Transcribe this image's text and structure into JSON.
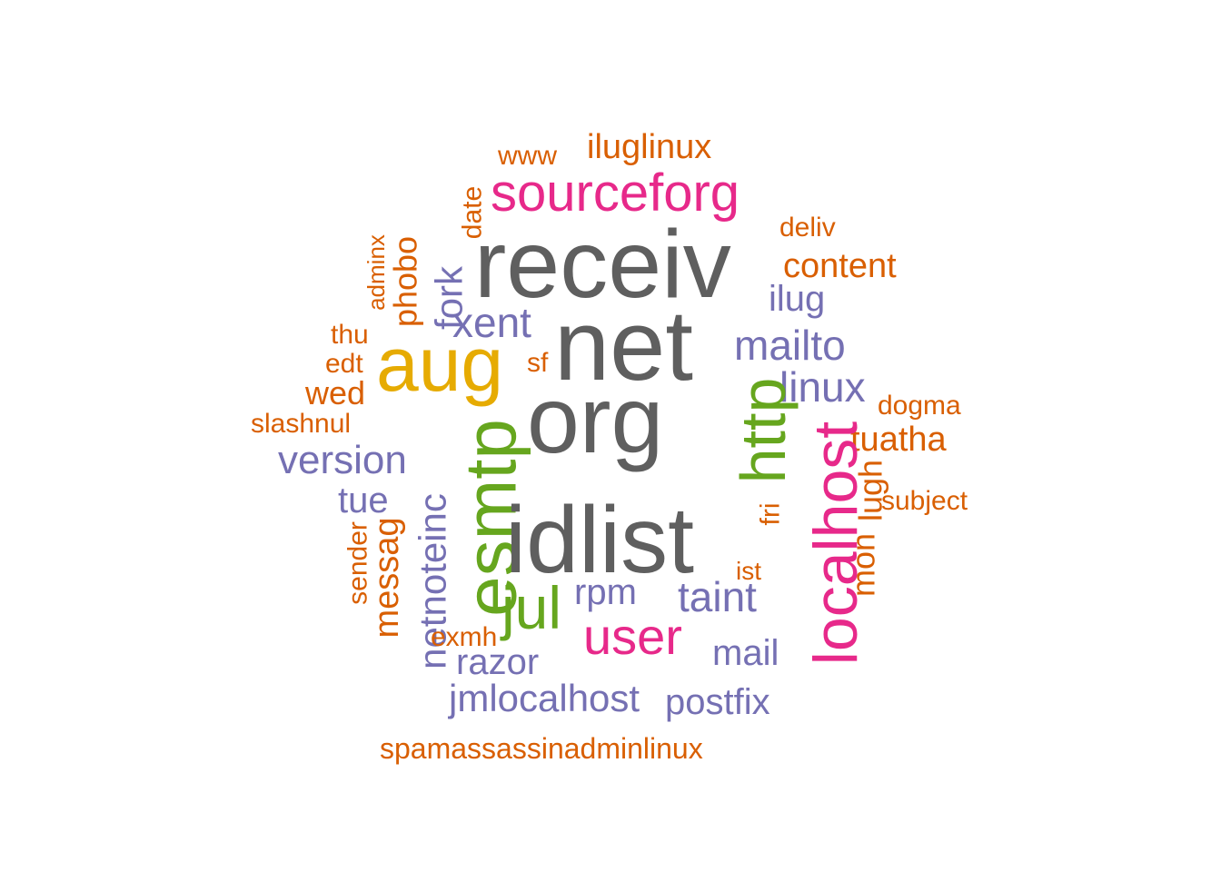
{
  "colors": {
    "gray": "#5f5f5f",
    "orange": "#d95f02",
    "purple": "#7570b3",
    "magenta": "#e7298a",
    "green": "#66a61e",
    "gold": "#e6ab02"
  },
  "words": [
    {
      "text": "www",
      "color": "orange",
      "vertical": false
    },
    {
      "text": "iluglinux",
      "color": "orange",
      "vertical": false
    },
    {
      "text": "sourceforg",
      "color": "magenta",
      "vertical": false
    },
    {
      "text": "date",
      "color": "orange",
      "vertical": true
    },
    {
      "text": "deliv",
      "color": "orange",
      "vertical": false
    },
    {
      "text": "adminx",
      "color": "orange",
      "vertical": true
    },
    {
      "text": "phobo",
      "color": "orange",
      "vertical": true
    },
    {
      "text": "receiv",
      "color": "gray",
      "vertical": false
    },
    {
      "text": "content",
      "color": "orange",
      "vertical": false
    },
    {
      "text": "fork",
      "color": "purple",
      "vertical": true
    },
    {
      "text": "ilug",
      "color": "purple",
      "vertical": false
    },
    {
      "text": "xent",
      "color": "purple",
      "vertical": false
    },
    {
      "text": "thu",
      "color": "orange",
      "vertical": false
    },
    {
      "text": "net",
      "color": "gray",
      "vertical": false
    },
    {
      "text": "mailto",
      "color": "purple",
      "vertical": false
    },
    {
      "text": "aug",
      "color": "gold",
      "vertical": false
    },
    {
      "text": "edt",
      "color": "orange",
      "vertical": false
    },
    {
      "text": "sf",
      "color": "orange",
      "vertical": false
    },
    {
      "text": "linux",
      "color": "purple",
      "vertical": false
    },
    {
      "text": "wed",
      "color": "orange",
      "vertical": false
    },
    {
      "text": "dogma",
      "color": "orange",
      "vertical": false
    },
    {
      "text": "slashnul",
      "color": "orange",
      "vertical": false
    },
    {
      "text": "org",
      "color": "gray",
      "vertical": false
    },
    {
      "text": "http",
      "color": "green",
      "vertical": true
    },
    {
      "text": "tuatha",
      "color": "orange",
      "vertical": false
    },
    {
      "text": "version",
      "color": "purple",
      "vertical": false
    },
    {
      "text": "esmtp",
      "color": "green",
      "vertical": true
    },
    {
      "text": "localhost",
      "color": "magenta",
      "vertical": true
    },
    {
      "text": "lugh",
      "color": "orange",
      "vertical": true
    },
    {
      "text": "subject",
      "color": "orange",
      "vertical": false
    },
    {
      "text": "tue",
      "color": "purple",
      "vertical": false
    },
    {
      "text": "netnoteinc",
      "color": "purple",
      "vertical": true
    },
    {
      "text": "idlist",
      "color": "gray",
      "vertical": false
    },
    {
      "text": "fri",
      "color": "orange",
      "vertical": true
    },
    {
      "text": "sender",
      "color": "orange",
      "vertical": true
    },
    {
      "text": "messag",
      "color": "orange",
      "vertical": true
    },
    {
      "text": "mon",
      "color": "orange",
      "vertical": true
    },
    {
      "text": "ist",
      "color": "orange",
      "vertical": false
    },
    {
      "text": "jul",
      "color": "green",
      "vertical": false
    },
    {
      "text": "rpm",
      "color": "purple",
      "vertical": false
    },
    {
      "text": "taint",
      "color": "purple",
      "vertical": false
    },
    {
      "text": "user",
      "color": "magenta",
      "vertical": false
    },
    {
      "text": "exmh",
      "color": "orange",
      "vertical": false
    },
    {
      "text": "mail",
      "color": "purple",
      "vertical": false
    },
    {
      "text": "razor",
      "color": "purple",
      "vertical": false
    },
    {
      "text": "jmlocalhost",
      "color": "purple",
      "vertical": false
    },
    {
      "text": "postfix",
      "color": "purple",
      "vertical": false
    },
    {
      "text": "spamassassinadminlinux",
      "color": "orange",
      "vertical": false
    }
  ]
}
